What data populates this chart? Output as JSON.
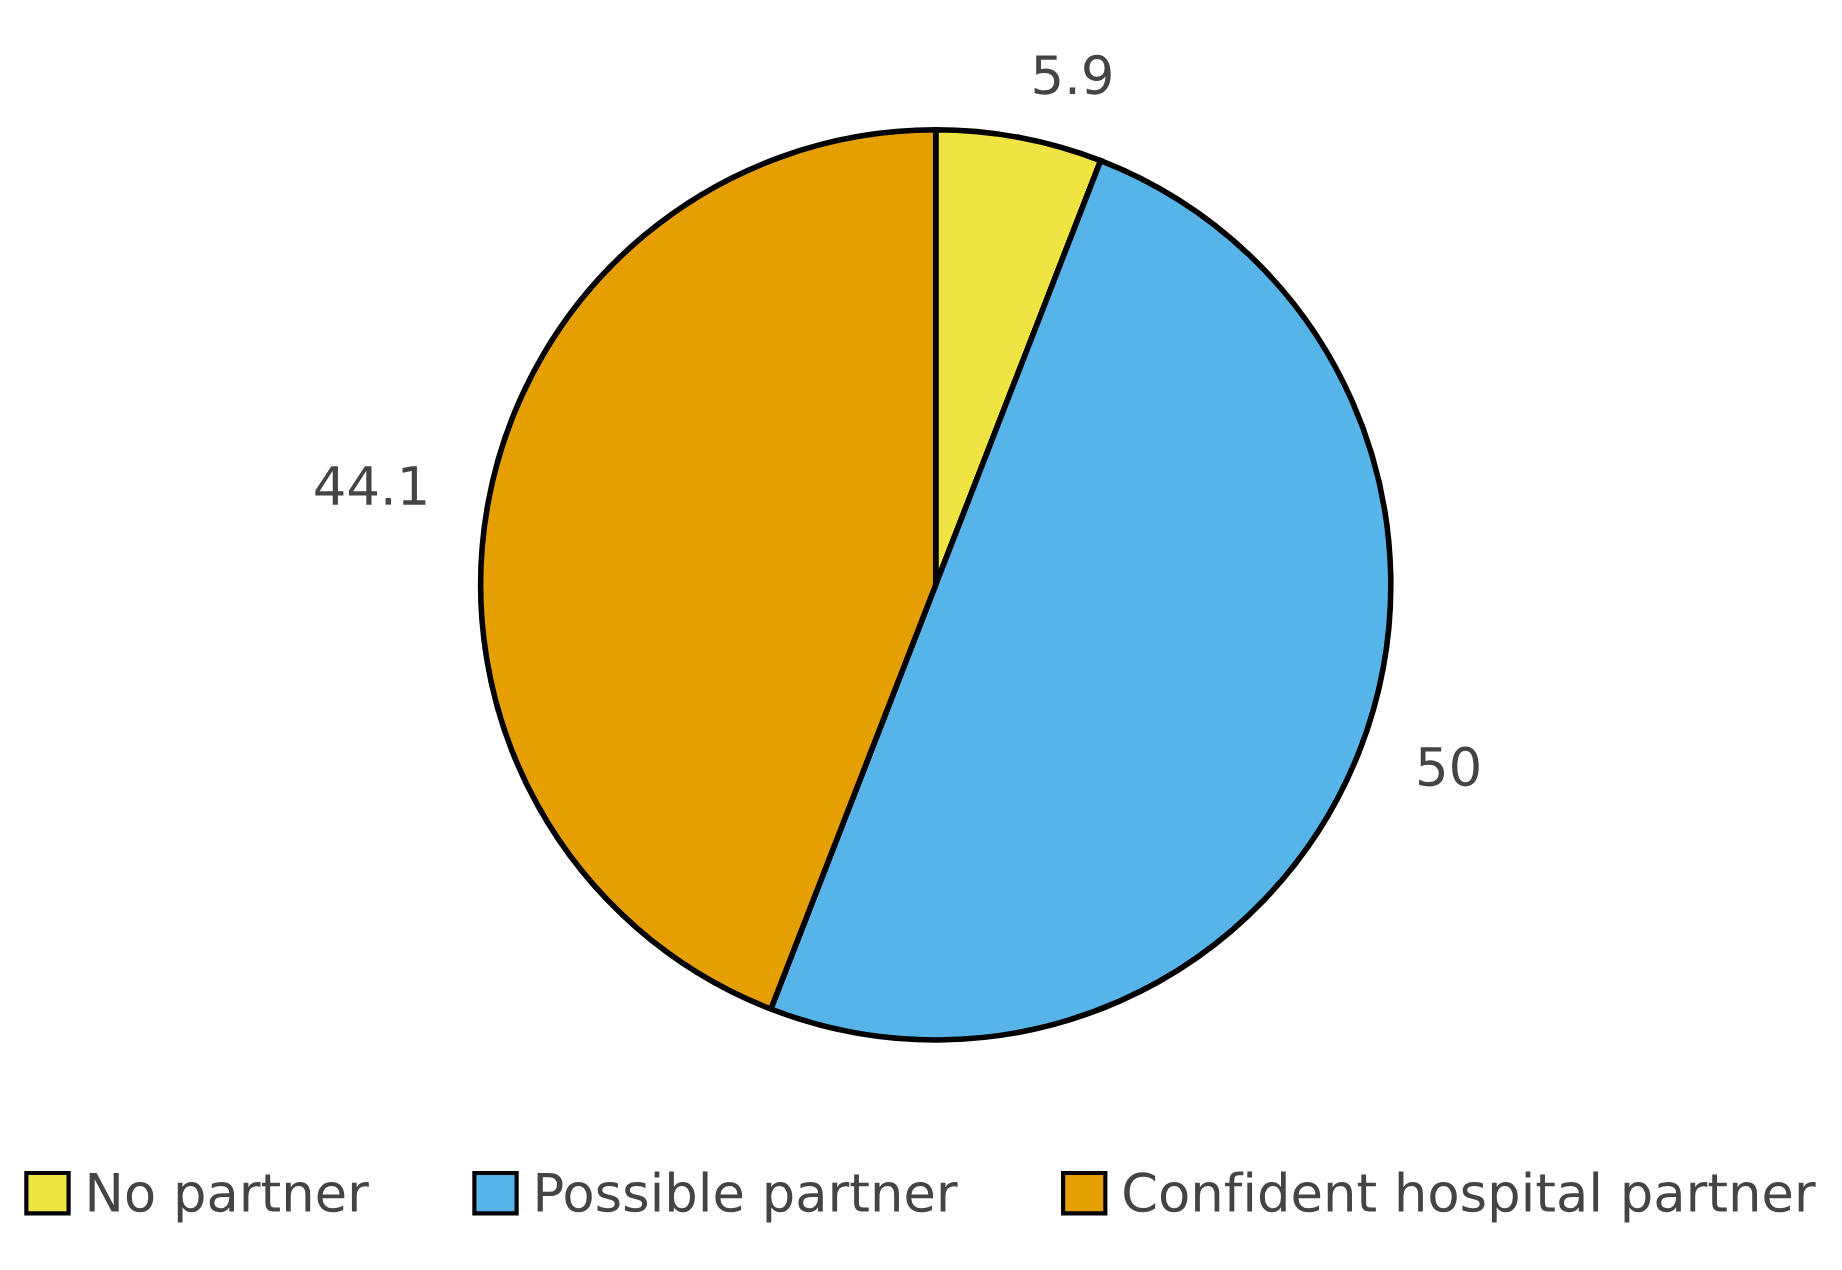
{
  "chart_data": {
    "type": "pie",
    "categories": [
      "No partner",
      "Possible partner",
      "Confident hospital partner"
    ],
    "values": [
      5.9,
      50,
      44.1
    ],
    "colors": [
      "#f0e442",
      "#56b4e9",
      "#e69f00"
    ],
    "data_labels": true,
    "legend": "bottom"
  }
}
